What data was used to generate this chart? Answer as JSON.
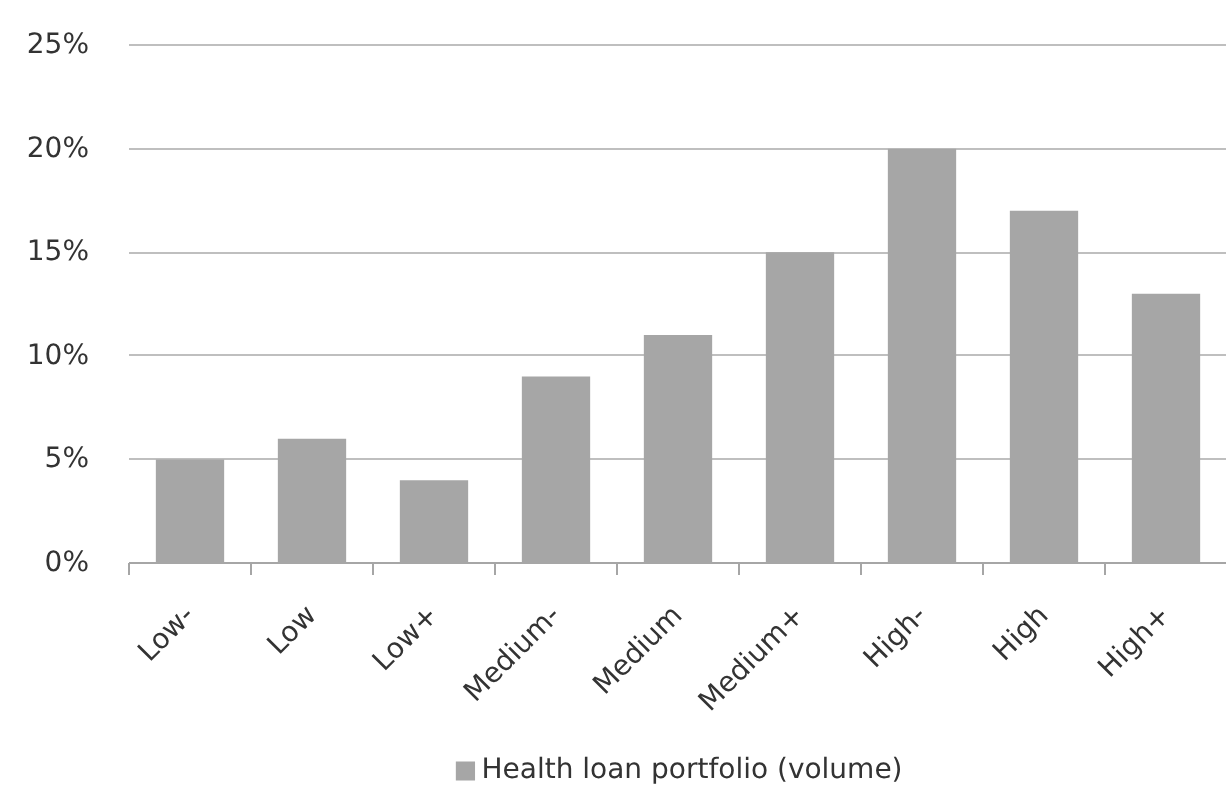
{
  "chart_data": {
    "type": "bar",
    "categories": [
      "Low-",
      "Low",
      "Low+",
      "Medium-",
      "Medium",
      "Medium+",
      "High-",
      "High",
      "High+"
    ],
    "series": [
      {
        "name": "Health loan portfolio (volume)",
        "color": "#a6a6a6",
        "values": [
          5,
          6,
          4,
          9,
          11,
          15,
          20,
          17,
          13
        ]
      }
    ],
    "ylim": [
      0,
      25
    ],
    "yticks": [
      {
        "value": 0,
        "label": "0%"
      },
      {
        "value": 5,
        "label": "5%"
      },
      {
        "value": 10,
        "label": "10%"
      },
      {
        "value": 15,
        "label": "15%"
      },
      {
        "value": 20,
        "label": "20%"
      },
      {
        "value": 25,
        "label": "25%"
      }
    ],
    "grid": "y",
    "legend": "bottom"
  }
}
